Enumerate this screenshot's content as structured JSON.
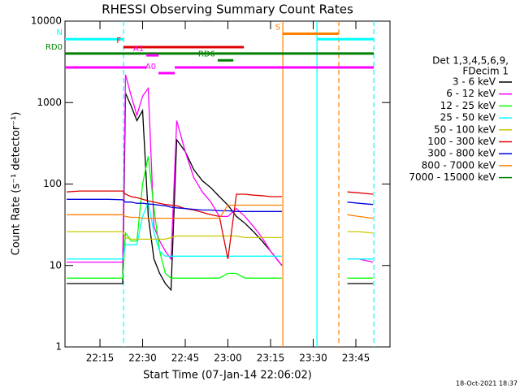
{
  "chart_data": {
    "type": "line",
    "title": "RHESSI Observing Summary Count Rates",
    "xlabel": "Start Time (07-Jan-14 22:06:02)",
    "ylabel": "Count Rate (s⁻¹ detector⁻¹)",
    "legend_title": [
      "Det 1,3,4,5,6,9,",
      "FDecim 1"
    ],
    "timestamp": "18-Oct-2021 18:37",
    "log_y": true,
    "legend": "right",
    "xlim": [
      2.7,
      117
    ],
    "ylim": [
      1,
      10000
    ],
    "xticks": [
      {
        "value": 15,
        "label": "22:15"
      },
      {
        "value": 30,
        "label": "22:30"
      },
      {
        "value": 45,
        "label": "22:45"
      },
      {
        "value": 60,
        "label": "23:00"
      },
      {
        "value": 75,
        "label": "23:15"
      },
      {
        "value": 90,
        "label": "23:30"
      },
      {
        "value": 105,
        "label": "23:45"
      }
    ],
    "yticks": [
      1,
      10,
      100,
      1000,
      10000
    ],
    "x": [
      3.3,
      8,
      13,
      18,
      23,
      24,
      26,
      28,
      30,
      32,
      34,
      36,
      38,
      40,
      42,
      45,
      48,
      51,
      54,
      57,
      60,
      63,
      66,
      69,
      72,
      75,
      79,
      90,
      102,
      106,
      111
    ],
    "series": [
      {
        "name": "3 - 6 keV",
        "color": "#000000",
        "values": [
          6,
          6,
          6,
          6,
          6,
          1300,
          900,
          600,
          800,
          40,
          12,
          8,
          6,
          5,
          350,
          250,
          150,
          110,
          90,
          70,
          55,
          40,
          33,
          26,
          20,
          15,
          10,
          null,
          6,
          6,
          6
        ]
      },
      {
        "name": "6 - 12 keV",
        "color": "#ff00ff",
        "values": [
          11,
          11,
          11,
          11,
          11,
          2200,
          1200,
          700,
          1200,
          1500,
          30,
          20,
          15,
          12,
          600,
          250,
          120,
          80,
          60,
          40,
          40,
          50,
          40,
          30,
          22,
          15,
          10,
          null,
          12,
          12,
          11
        ]
      },
      {
        "name": "12 - 25 keV",
        "color": "#00ff00",
        "values": [
          7,
          7,
          7,
          7,
          7,
          25,
          20,
          20,
          100,
          220,
          50,
          15,
          8,
          7,
          7,
          7,
          7,
          7,
          7,
          7,
          8,
          8,
          7,
          7,
          7,
          7,
          7,
          null,
          7,
          7,
          7
        ]
      },
      {
        "name": "25 - 50 keV",
        "color": "#00ffff",
        "values": [
          12,
          12,
          12,
          12,
          12,
          18,
          18,
          18,
          40,
          60,
          25,
          15,
          13,
          13,
          13,
          13,
          13,
          13,
          13,
          13,
          13,
          13,
          13,
          13,
          13,
          13,
          13,
          null,
          12,
          12,
          12
        ]
      },
      {
        "name": "50 - 100 keV",
        "color": "#c8c800",
        "values": [
          26,
          26,
          26,
          26,
          26,
          22,
          21,
          21,
          21,
          21,
          21,
          21,
          21,
          22,
          23,
          23,
          23,
          23,
          23,
          23,
          23,
          23,
          22,
          22,
          22,
          22,
          22,
          null,
          26,
          26,
          25
        ]
      },
      {
        "name": "100 - 300 keV",
        "color": "#e00000",
        "values": [
          80,
          82,
          82,
          82,
          82,
          75,
          70,
          68,
          65,
          62,
          60,
          58,
          56,
          55,
          54,
          50,
          48,
          45,
          42,
          40,
          12,
          75,
          75,
          73,
          72,
          70,
          70,
          null,
          80,
          78,
          75
        ]
      },
      {
        "name": "300 - 800 keV",
        "color": "#0000e0",
        "values": [
          65,
          65,
          65,
          65,
          64,
          60,
          60,
          58,
          58,
          57,
          56,
          55,
          54,
          52,
          51,
          50,
          49,
          48,
          48,
          47,
          47,
          46,
          46,
          46,
          46,
          46,
          46,
          null,
          60,
          58,
          56
        ]
      },
      {
        "name": "800 - 7000 keV",
        "color": "#ff8000",
        "values": [
          42,
          42,
          42,
          42,
          42,
          40,
          39,
          39,
          38,
          38,
          38,
          38,
          38,
          38,
          38,
          38,
          38,
          38,
          38,
          38,
          55,
          55,
          55,
          55,
          55,
          55,
          55,
          null,
          42,
          40,
          38
        ]
      },
      {
        "name": "7000 - 15000 keV",
        "color": "#008000",
        "values": [
          null,
          null,
          null,
          null,
          null,
          null,
          null,
          null,
          null,
          null,
          null,
          null,
          null,
          null,
          null,
          null,
          null,
          null,
          null,
          null,
          null,
          null,
          null,
          null,
          null,
          null,
          null,
          null,
          null,
          null,
          null
        ]
      }
    ],
    "vlines": [
      {
        "x": 23.3,
        "color": "#00ffff",
        "dashed": true
      },
      {
        "x": 79.3,
        "color": "#ff8000",
        "dashed": false
      },
      {
        "x": 91.3,
        "color": "#00ffff",
        "dashed": false
      },
      {
        "x": 99,
        "color": "#ff8000",
        "dashed": true
      },
      {
        "x": 111.3,
        "color": "#00ffff",
        "dashed": true
      }
    ],
    "flags": [
      {
        "label": "N",
        "color": "#00ffff",
        "start": 2.7,
        "end": 23.3,
        "level": 6000
      },
      {
        "color": "#00ffff",
        "start": 91.3,
        "end": 111.3,
        "level": 6000
      },
      {
        "label": "F",
        "color": "#e00000",
        "start": 23.3,
        "end": 65.6,
        "level": 4800
      },
      {
        "label": "RD0",
        "color": "#008000",
        "start": 2.7,
        "end": 111.3,
        "level": 4000
      },
      {
        "label": "RD6",
        "color": "#008000",
        "start": 56.4,
        "end": 61.9,
        "level": 3300
      },
      {
        "color": "#ff00ff",
        "start": 2.7,
        "end": 31.3,
        "level": 2700
      },
      {
        "color": "#ff00ff",
        "start": 41.3,
        "end": 111.3,
        "level": 2700
      },
      {
        "label": "A1",
        "color": "#ff00ff",
        "start": 31.3,
        "end": 35.6,
        "level": 3800
      },
      {
        "label": "A0",
        "color": "#ff00ff",
        "start": 35.6,
        "end": 41.3,
        "level": 2300
      },
      {
        "label": "S",
        "color": "#ff8000",
        "start": 79.3,
        "end": 99,
        "level": 7000
      }
    ]
  }
}
